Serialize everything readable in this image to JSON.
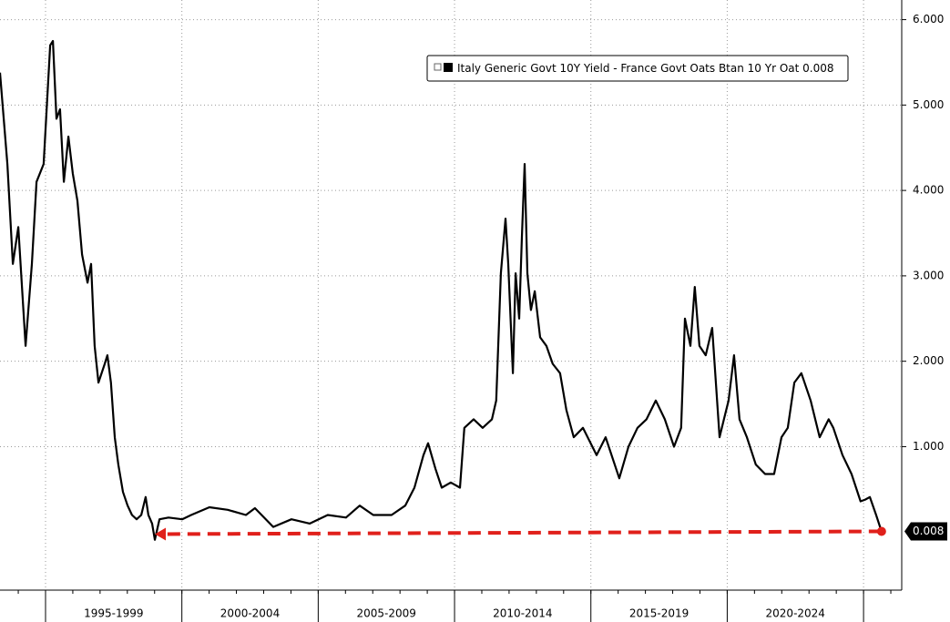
{
  "chart_data": {
    "type": "line",
    "series": [
      {
        "name": "Italy Generic Govt 10Y Yield - France Govt Oats Btan 10 Yr Oat",
        "color": "#000000",
        "x": [
          1993.33,
          1993.6,
          1993.8,
          1994.0,
          1994.27,
          1994.5,
          1994.67,
          1994.93,
          1995.17,
          1995.27,
          1995.4,
          1995.53,
          1995.67,
          1995.84,
          1996.0,
          1996.17,
          1996.34,
          1996.54,
          1996.67,
          1996.8,
          1996.94,
          1997.17,
          1997.27,
          1997.4,
          1997.54,
          1997.67,
          1997.84,
          1998.01,
          1998.17,
          1998.34,
          1998.51,
          1998.67,
          1998.77,
          1998.91,
          1999.01,
          1999.18,
          1999.51,
          2000.01,
          2000.34,
          2001.01,
          2001.68,
          2002.35,
          2002.68,
          2003.35,
          2004.02,
          2004.69,
          2005.35,
          2006.02,
          2006.52,
          2007.02,
          2007.69,
          2008.19,
          2008.53,
          2008.86,
          2009.03,
          2009.3,
          2009.53,
          2009.86,
          2010.2,
          2010.36,
          2010.7,
          2011.03,
          2011.37,
          2011.53,
          2011.7,
          2011.87,
          2011.97,
          2012.14,
          2012.24,
          2012.37,
          2012.47,
          2012.57,
          2012.67,
          2012.8,
          2012.94,
          2013.14,
          2013.37,
          2013.6,
          2013.87,
          2014.1,
          2014.37,
          2014.71,
          2015.21,
          2015.54,
          2016.04,
          2016.38,
          2016.71,
          2017.04,
          2017.38,
          2017.71,
          2018.05,
          2018.31,
          2018.45,
          2018.65,
          2018.81,
          2018.98,
          2019.21,
          2019.45,
          2019.72,
          2019.88,
          2020.05,
          2020.25,
          2020.45,
          2020.72,
          2021.05,
          2021.39,
          2021.72,
          2021.99,
          2022.22,
          2022.46,
          2022.72,
          2023.06,
          2023.39,
          2023.72,
          2023.89,
          2024.23,
          2024.56,
          2024.89,
          2025.06,
          2025.23,
          2025.46,
          2025.66
        ],
        "values": [
          5.38,
          4.31,
          3.14,
          3.57,
          2.18,
          3.14,
          4.1,
          4.31,
          5.7,
          5.75,
          4.84,
          4.95,
          4.1,
          4.63,
          4.2,
          3.88,
          3.25,
          2.92,
          3.14,
          2.18,
          1.75,
          1.97,
          2.07,
          1.75,
          1.11,
          0.79,
          0.47,
          0.31,
          0.2,
          0.15,
          0.2,
          0.41,
          0.2,
          0.1,
          -0.09,
          0.15,
          0.17,
          0.15,
          0.2,
          0.29,
          0.26,
          0.2,
          0.28,
          0.06,
          0.15,
          0.1,
          0.2,
          0.17,
          0.31,
          0.2,
          0.2,
          0.31,
          0.52,
          0.9,
          1.04,
          0.74,
          0.52,
          0.58,
          0.52,
          1.22,
          1.32,
          1.22,
          1.32,
          1.54,
          3.03,
          3.67,
          3.14,
          1.86,
          3.03,
          2.5,
          3.46,
          4.31,
          3.03,
          2.6,
          2.82,
          2.28,
          2.18,
          1.97,
          1.86,
          1.43,
          1.11,
          1.22,
          0.9,
          1.11,
          0.63,
          1.0,
          1.22,
          1.32,
          1.54,
          1.32,
          1.0,
          1.22,
          2.5,
          2.18,
          2.87,
          2.18,
          2.07,
          2.39,
          1.11,
          1.32,
          1.54,
          2.07,
          1.32,
          1.11,
          0.79,
          0.68,
          0.68,
          1.11,
          1.22,
          1.75,
          1.86,
          1.54,
          1.11,
          1.32,
          1.22,
          0.9,
          0.68,
          0.36,
          0.38,
          0.41,
          0.2,
          0.008
        ]
      }
    ],
    "periods": [
      "1995-1999",
      "2000-2004",
      "2005-2009",
      "2010-2014",
      "2015-2019",
      "2020-2024"
    ],
    "xlim": [
      1993.33,
      2026.4
    ],
    "ylim": [
      -0.68,
      6.23
    ],
    "yticks": [
      {
        "value": 1,
        "label": "1.000"
      },
      {
        "value": 2,
        "label": "2.000"
      },
      {
        "value": 3,
        "label": "3.000"
      },
      {
        "value": 4,
        "label": "4.000"
      },
      {
        "value": 5,
        "label": "5.000"
      },
      {
        "value": 6,
        "label": "6.000"
      }
    ],
    "last_value_label": "0.008",
    "arrow_color": "#e0201b",
    "grid": true
  }
}
